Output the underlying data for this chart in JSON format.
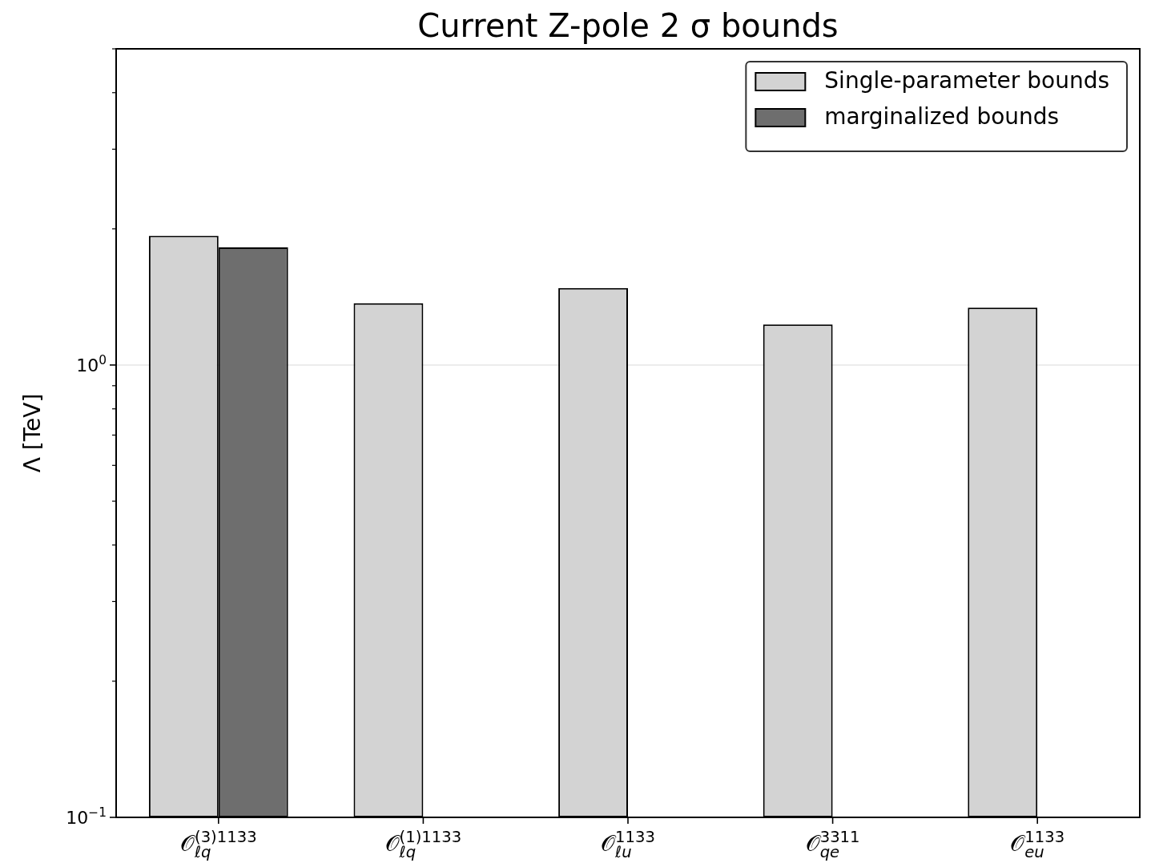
{
  "chart_data": {
    "type": "bar",
    "title": "Current Z-pole 2 σ bounds",
    "ylabel": "Λ [TeV]",
    "categories": [
      "𝒪$_{ℓq}$$^{(3)1133}$",
      "𝒪$_{ℓq}$$^{(1)1133}$",
      "𝒪$_{ℓu}$$^{1133}$",
      "𝒪$_{qe}$$^{3311}$",
      "𝒪$_{eu}$$^{1133}$"
    ],
    "series": [
      {
        "name": "Single-parameter bounds",
        "color": "#d3d3d3",
        "values": [
          1.93,
          1.37,
          1.48,
          1.23,
          1.34
        ]
      },
      {
        "name": "marginalized bounds",
        "color": "#6e6e6e",
        "values": [
          1.82,
          null,
          null,
          null,
          null
        ]
      }
    ],
    "log": "y",
    "ylim": [
      0.1,
      5
    ],
    "yticks": [
      {
        "value": 0.1,
        "label": "10$^{−1}$"
      },
      {
        "value": 0.2,
        "label": null
      },
      {
        "value": 0.3,
        "label": null
      },
      {
        "value": 0.4,
        "label": null
      },
      {
        "value": 0.5,
        "label": null
      },
      {
        "value": 0.6,
        "label": null
      },
      {
        "value": 0.7,
        "label": null
      },
      {
        "value": 0.8,
        "label": null
      },
      {
        "value": 0.9,
        "label": null
      },
      {
        "value": 1,
        "label": "10$^{0}$"
      },
      {
        "value": 2,
        "label": null
      },
      {
        "value": 3,
        "label": null
      },
      {
        "value": 4,
        "label": null
      },
      {
        "value": 5,
        "label": null
      }
    ],
    "grid": "y",
    "legend": "top right"
  }
}
